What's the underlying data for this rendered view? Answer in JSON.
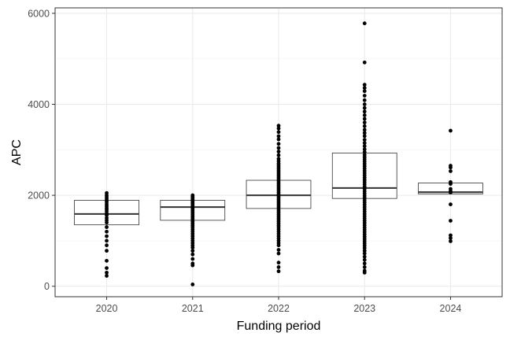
{
  "chart_data": {
    "type": "boxplot",
    "xlabel": "Funding period",
    "ylabel": "APC",
    "categories": [
      "2020",
      "2021",
      "2022",
      "2023",
      "2024"
    ],
    "ylim": [
      -230,
      6120
    ],
    "yticks": [
      0,
      2000,
      4000,
      6000
    ],
    "grid": true,
    "theme": {
      "panel_border": "#333333",
      "grid_major": "#ebebeb",
      "grid_minor": "#f4f4f4",
      "box_line": "#333333",
      "point": "#000000"
    },
    "boxes": [
      {
        "category": "2020",
        "q1": 1350,
        "median": 1590,
        "q3": 1890
      },
      {
        "category": "2021",
        "q1": 1450,
        "median": 1740,
        "q3": 1890
      },
      {
        "category": "2022",
        "q1": 1710,
        "median": 2000,
        "q3": 2330
      },
      {
        "category": "2023",
        "q1": 1930,
        "median": 2160,
        "q3": 2930
      },
      {
        "category": "2024",
        "q1": 2030,
        "median": 2070,
        "q3": 2270
      }
    ],
    "points": [
      {
        "category": "2020",
        "values": [
          2050,
          2000,
          1960,
          1920,
          1880,
          1850,
          1800,
          1760,
          1720,
          1690,
          1650,
          1600,
          1560,
          1500,
          1450,
          1400,
          1300,
          1200,
          1100,
          1000,
          900,
          780,
          560,
          400,
          300,
          230
        ]
      },
      {
        "category": "2021",
        "values": [
          2000,
          1970,
          1940,
          1910,
          1880,
          1850,
          1820,
          1790,
          1760,
          1730,
          1700,
          1660,
          1620,
          1580,
          1540,
          1500,
          1460,
          1420,
          1380,
          1340,
          1300,
          1250,
          1200,
          1150,
          1100,
          1050,
          1000,
          950,
          900,
          850,
          780,
          700,
          600,
          500,
          460,
          40
        ]
      },
      {
        "category": "2022",
        "values": [
          3530,
          3470,
          3390,
          3300,
          3230,
          3130,
          3040,
          2960,
          2880,
          2800,
          2750,
          2700,
          2660,
          2620,
          2580,
          2540,
          2500,
          2460,
          2420,
          2380,
          2340,
          2300,
          2260,
          2220,
          2180,
          2140,
          2100,
          2060,
          2020,
          1980,
          1940,
          1900,
          1860,
          1820,
          1780,
          1740,
          1700,
          1660,
          1620,
          1580,
          1540,
          1500,
          1460,
          1420,
          1380,
          1340,
          1300,
          1250,
          1200,
          1150,
          1100,
          1050,
          1000,
          950,
          900,
          800,
          720,
          520,
          420,
          330
        ]
      },
      {
        "category": "2023",
        "values": [
          5780,
          4920,
          4430,
          4360,
          4290,
          4190,
          4090,
          4000,
          3920,
          3840,
          3760,
          3680,
          3600,
          3520,
          3440,
          3370,
          3300,
          3220,
          3150,
          3080,
          3010,
          2950,
          2890,
          2840,
          2790,
          2740,
          2690,
          2640,
          2590,
          2540,
          2490,
          2440,
          2390,
          2340,
          2290,
          2240,
          2190,
          2140,
          2090,
          2040,
          1990,
          1940,
          1890,
          1840,
          1790,
          1740,
          1690,
          1640,
          1590,
          1540,
          1490,
          1440,
          1390,
          1340,
          1290,
          1240,
          1190,
          1140,
          1090,
          1040,
          990,
          940,
          890,
          840,
          780,
          720,
          650,
          580,
          500,
          420,
          340,
          300
        ]
      },
      {
        "category": "2024",
        "values": [
          3420,
          2650,
          2610,
          2530,
          2290,
          2250,
          2140,
          2090,
          2060,
          1800,
          1440,
          1120,
          1060,
          990
        ]
      }
    ]
  }
}
